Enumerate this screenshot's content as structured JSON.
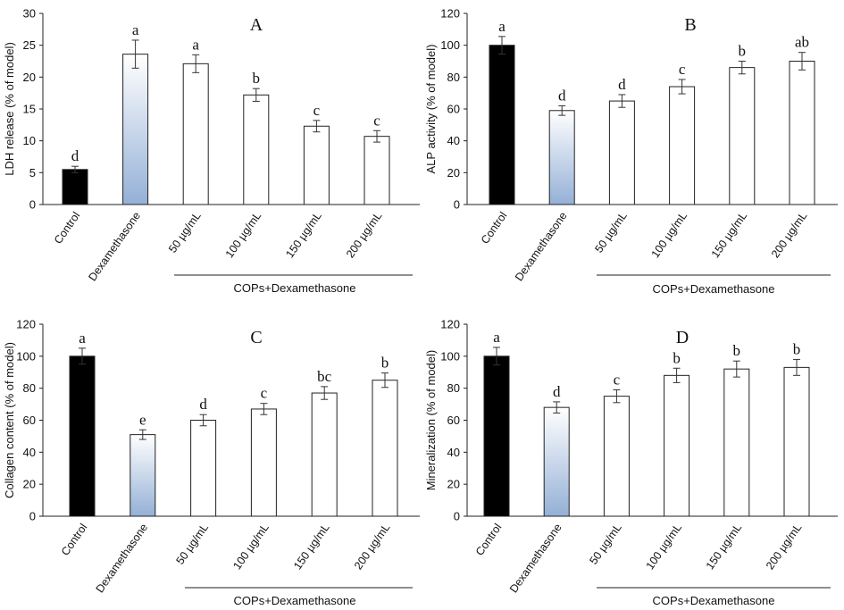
{
  "chart_data": [
    {
      "type": "bar",
      "panel": "A",
      "ylabel": "LDH release (% of model)",
      "ylim": [
        0,
        30
      ],
      "yticks": [
        0,
        5,
        10,
        15,
        20,
        25,
        30
      ],
      "categories": [
        "Control",
        "Dexamethasone",
        "50 µg/mL",
        "100 µg/mL",
        "150 µg/mL",
        "200 µg/mL"
      ],
      "values": [
        5.5,
        23.6,
        22.1,
        17.2,
        12.3,
        10.7
      ],
      "errors": [
        0.5,
        2.2,
        1.4,
        1.0,
        0.9,
        0.9
      ],
      "letters": [
        "d",
        "a",
        "a",
        "b",
        "c",
        "c"
      ],
      "group_label": "COPs+Dexamethasone"
    },
    {
      "type": "bar",
      "panel": "B",
      "ylabel": "ALP activity (% of model)",
      "ylim": [
        0,
        120
      ],
      "yticks": [
        0,
        20,
        40,
        60,
        80,
        100,
        120
      ],
      "categories": [
        "Control",
        "Dexamethasone",
        "50 µg/mL",
        "100 µg/mL",
        "150 µg/mL",
        "200 µg/mL"
      ],
      "values": [
        100,
        59,
        65,
        74,
        86,
        90
      ],
      "errors": [
        5.5,
        3.0,
        4.0,
        4.5,
        4.0,
        5.5
      ],
      "letters": [
        "a",
        "d",
        "d",
        "c",
        "b",
        "ab"
      ],
      "group_label": "COPs+Dexamethasone"
    },
    {
      "type": "bar",
      "panel": "C",
      "ylabel": "Collagen content (% of model)",
      "ylim": [
        0,
        120
      ],
      "yticks": [
        0,
        20,
        40,
        60,
        80,
        100,
        120
      ],
      "categories": [
        "Control",
        "Dexamethasone",
        "50 µg/mL",
        "100 µg/mL",
        "150 µg/mL",
        "200 µg/mL"
      ],
      "values": [
        100,
        51,
        60,
        67,
        77,
        85
      ],
      "errors": [
        5.0,
        3.0,
        3.5,
        3.5,
        4.0,
        4.5
      ],
      "letters": [
        "a",
        "e",
        "d",
        "c",
        "bc",
        "b"
      ],
      "group_label": "COPs+Dexamethasone"
    },
    {
      "type": "bar",
      "panel": "D",
      "ylabel": "Mineralization (% of model)",
      "ylim": [
        0,
        120
      ],
      "yticks": [
        0,
        20,
        40,
        60,
        80,
        100,
        120
      ],
      "categories": [
        "Control",
        "Dexamethasone",
        "50 µg/mL",
        "100 µg/mL",
        "150 µg/mL",
        "200 µg/mL"
      ],
      "values": [
        100,
        68,
        75,
        88,
        92,
        93
      ],
      "errors": [
        5.5,
        3.5,
        4.0,
        4.5,
        5.0,
        5.0
      ],
      "letters": [
        "a",
        "d",
        "c",
        "b",
        "b",
        "b"
      ],
      "group_label": "COPs+Dexamethasone"
    }
  ],
  "colors": {
    "control_fill": "#000000",
    "dexamethasone_top": "#ffffff",
    "dexamethasone_bottom": "#94b0d6",
    "treatment_fill": "#ffffff",
    "bar_stroke": "#222222"
  }
}
